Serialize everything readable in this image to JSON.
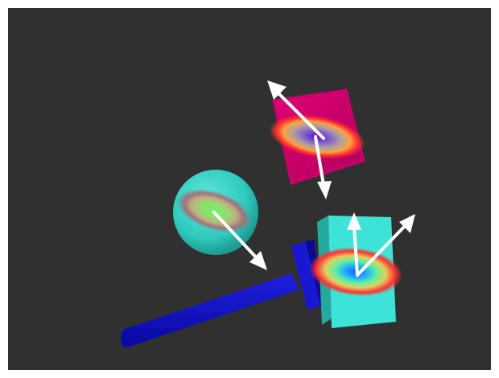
{
  "scene": {
    "background_color": "#303030",
    "frame_color": "#ffffff",
    "objects": [
      {
        "name": "cube",
        "color": "#d6006f",
        "heatmap_peak": "violet"
      },
      {
        "name": "sphere",
        "color": "#33d1c4",
        "heatmap_peak": "green"
      },
      {
        "name": "box",
        "color": "#3ee3d8",
        "heatmap_peak": "blue"
      },
      {
        "name": "hammer",
        "color": "#1010c8"
      }
    ],
    "arrow_color": "#ffffff",
    "arrow_count": 5,
    "icons": [
      "arrow-icon"
    ]
  }
}
